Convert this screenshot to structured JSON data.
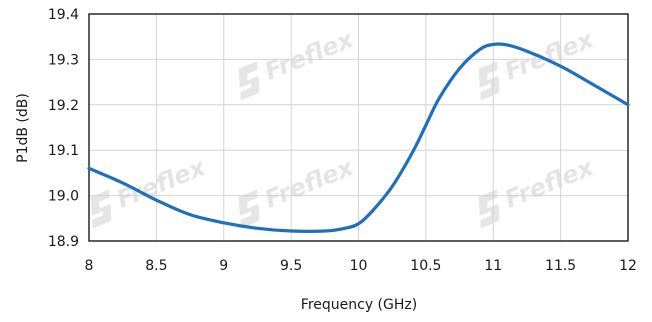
{
  "chart_data": {
    "type": "line",
    "xlabel": "Frequency (GHz)",
    "ylabel": "P1dB (dB)",
    "xlim": [
      8,
      12
    ],
    "ylim": [
      18.9,
      19.4
    ],
    "x_ticks": [
      "8",
      "8.5",
      "9",
      "9.5",
      "10",
      "10.5",
      "11",
      "11.5",
      "12"
    ],
    "y_ticks": [
      "18.9",
      "19.0",
      "19.1",
      "19.2",
      "19.3",
      "19.4"
    ],
    "grid": true,
    "watermark": "Freflex",
    "series": [
      {
        "color": "#1f6fbf",
        "x": [
          8.0,
          8.25,
          8.5,
          8.75,
          9.0,
          9.25,
          9.5,
          9.75,
          9.9,
          10.0,
          10.1,
          10.25,
          10.4,
          10.5,
          10.6,
          10.75,
          10.9,
          11.0,
          11.1,
          11.25,
          11.5,
          11.75,
          12.0
        ],
        "y": [
          19.06,
          19.028,
          18.99,
          18.958,
          18.94,
          18.928,
          18.922,
          18.922,
          18.928,
          18.938,
          18.965,
          19.02,
          19.095,
          19.155,
          19.215,
          19.28,
          19.322,
          19.333,
          19.332,
          19.318,
          19.285,
          19.243,
          19.2
        ]
      }
    ]
  }
}
